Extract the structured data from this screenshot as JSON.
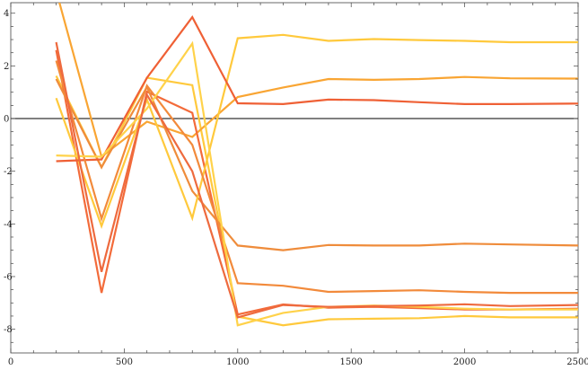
{
  "chart_data": {
    "type": "line",
    "title": "",
    "xlabel": "",
    "ylabel": "",
    "xlim": [
      0,
      2500
    ],
    "ylim": [
      -8.9,
      4.4
    ],
    "x_ticks": [
      0,
      500,
      1000,
      1500,
      2000,
      2500
    ],
    "y_ticks": [
      -8,
      -6,
      -4,
      -2,
      0,
      2,
      4
    ],
    "x_tick_labels": [
      "0",
      "500",
      "1000",
      "1500",
      "2000",
      "2500"
    ],
    "y_tick_labels": [
      "-8",
      "-6",
      "-4",
      "-2",
      "0",
      "2",
      "4"
    ],
    "grid": false,
    "reference_line": 0,
    "x": [
      200,
      400,
      600,
      800,
      1000,
      1200,
      1400,
      1600,
      1800,
      2000,
      2200,
      2500
    ],
    "series": [
      {
        "color": "#ffc93c",
        "values": [
          1.62,
          -1.85,
          1.55,
          1.27,
          -7.52,
          -7.85,
          -7.62,
          -7.6,
          -7.58,
          -7.5,
          -7.55,
          -7.55
        ]
      },
      {
        "color": "#f9a533",
        "values": [
          4.85,
          -1.45,
          -0.12,
          -0.7,
          0.82,
          1.18,
          1.5,
          1.47,
          1.5,
          1.58,
          1.53,
          1.52
        ]
      },
      {
        "color": "#f36b3a",
        "values": [
          2.6,
          -6.62,
          1.02,
          0.22,
          -7.44,
          -7.06,
          -7.18,
          -7.15,
          -7.2,
          -7.25,
          -7.25,
          -7.22
        ]
      },
      {
        "color": "#ef8c3b",
        "values": [
          1.5,
          -1.85,
          1.2,
          -2.75,
          -4.82,
          -5.0,
          -4.8,
          -4.82,
          -4.82,
          -4.75,
          -4.78,
          -4.82
        ]
      },
      {
        "color": "#ffc93c",
        "values": [
          0.78,
          -4.08,
          0.72,
          -3.78,
          3.05,
          3.18,
          2.95,
          3.02,
          2.98,
          2.95,
          2.9,
          2.9
        ]
      },
      {
        "color": "#ef6035",
        "values": [
          -1.62,
          -1.55,
          1.55,
          3.85,
          0.58,
          0.55,
          0.72,
          0.7,
          0.62,
          0.55,
          0.55,
          0.57
        ]
      },
      {
        "color": "#f28a3b",
        "values": [
          2.2,
          -3.8,
          1.25,
          -1.0,
          -6.25,
          -6.35,
          -6.58,
          -6.55,
          -6.52,
          -6.58,
          -6.62,
          -6.62
        ]
      },
      {
        "color": "#ffd24a",
        "values": [
          -1.4,
          -1.45,
          0.38,
          2.85,
          -7.85,
          -7.38,
          -7.15,
          -7.1,
          -7.15,
          -7.22,
          -7.25,
          -7.25
        ]
      },
      {
        "color": "#ee6a3e",
        "values": [
          2.9,
          -5.82,
          0.9,
          -2.0,
          -7.55,
          -7.08,
          -7.15,
          -7.12,
          -7.1,
          -7.05,
          -7.12,
          -7.08
        ]
      }
    ]
  }
}
